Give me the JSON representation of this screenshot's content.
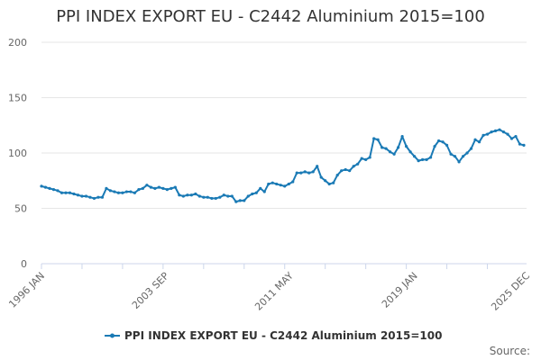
{
  "chart_data": {
    "type": "line",
    "title": "PPI INDEX EXPORT EU - C2442 Aluminium 2015=100",
    "xlabel": "",
    "ylabel": "",
    "ylim": [
      0,
      200
    ],
    "y_ticks": [
      0,
      50,
      100,
      150,
      200
    ],
    "x_tick_labels": [
      "1996 JAN",
      "2003 SEP",
      "2011 MAY",
      "2019 JAN",
      "2025 DEC"
    ],
    "x_tick_years": [
      1996.0,
      2003.667,
      2011.333,
      2019.0,
      2025.917
    ],
    "xlim": [
      1996.0,
      2025.917
    ],
    "grid": true,
    "legend_position": "bottom-center",
    "source_label": "Source:",
    "series": [
      {
        "name": "PPI INDEX EXPORT EU - C2442 Aluminium 2015=100",
        "color": "#1a7ab5",
        "points": [
          [
            1996.0,
            70
          ],
          [
            1996.25,
            69
          ],
          [
            1996.5,
            68
          ],
          [
            1996.75,
            67
          ],
          [
            1997.0,
            66
          ],
          [
            1997.25,
            64
          ],
          [
            1997.5,
            64
          ],
          [
            1997.75,
            64
          ],
          [
            1998.0,
            63
          ],
          [
            1998.25,
            62
          ],
          [
            1998.5,
            61
          ],
          [
            1998.75,
            61
          ],
          [
            1999.0,
            60
          ],
          [
            1999.25,
            59
          ],
          [
            1999.5,
            60
          ],
          [
            1999.75,
            60
          ],
          [
            2000.0,
            68
          ],
          [
            2000.25,
            66
          ],
          [
            2000.5,
            65
          ],
          [
            2000.75,
            64
          ],
          [
            2001.0,
            64
          ],
          [
            2001.25,
            65
          ],
          [
            2001.5,
            65
          ],
          [
            2001.75,
            64
          ],
          [
            2002.0,
            67
          ],
          [
            2002.25,
            68
          ],
          [
            2002.5,
            71
          ],
          [
            2002.75,
            69
          ],
          [
            2003.0,
            68
          ],
          [
            2003.25,
            69
          ],
          [
            2003.5,
            68
          ],
          [
            2003.75,
            67
          ],
          [
            2004.0,
            68
          ],
          [
            2004.25,
            69
          ],
          [
            2004.5,
            62
          ],
          [
            2004.75,
            61
          ],
          [
            2005.0,
            62
          ],
          [
            2005.25,
            62
          ],
          [
            2005.5,
            63
          ],
          [
            2005.75,
            61
          ],
          [
            2006.0,
            60
          ],
          [
            2006.25,
            60
          ],
          [
            2006.5,
            59
          ],
          [
            2006.75,
            59
          ],
          [
            2007.0,
            60
          ],
          [
            2007.25,
            62
          ],
          [
            2007.5,
            61
          ],
          [
            2007.75,
            61
          ],
          [
            2008.0,
            56
          ],
          [
            2008.25,
            57
          ],
          [
            2008.5,
            57
          ],
          [
            2008.75,
            61
          ],
          [
            2009.0,
            63
          ],
          [
            2009.25,
            64
          ],
          [
            2009.5,
            68
          ],
          [
            2009.75,
            65
          ],
          [
            2010.0,
            72
          ],
          [
            2010.25,
            73
          ],
          [
            2010.5,
            72
          ],
          [
            2010.75,
            71
          ],
          [
            2011.0,
            70
          ],
          [
            2011.25,
            72
          ],
          [
            2011.5,
            74
          ],
          [
            2011.75,
            82
          ],
          [
            2012.0,
            82
          ],
          [
            2012.25,
            83
          ],
          [
            2012.5,
            82
          ],
          [
            2012.75,
            83
          ],
          [
            2013.0,
            88
          ],
          [
            2013.25,
            78
          ],
          [
            2013.5,
            75
          ],
          [
            2013.75,
            72
          ],
          [
            2014.0,
            73
          ],
          [
            2014.25,
            80
          ],
          [
            2014.5,
            84
          ],
          [
            2014.75,
            85
          ],
          [
            2015.0,
            84
          ],
          [
            2015.25,
            88
          ],
          [
            2015.5,
            90
          ],
          [
            2015.75,
            95
          ],
          [
            2016.0,
            94
          ],
          [
            2016.25,
            96
          ],
          [
            2016.5,
            113
          ],
          [
            2016.75,
            112
          ],
          [
            2017.0,
            105
          ],
          [
            2017.25,
            104
          ],
          [
            2017.5,
            101
          ],
          [
            2017.75,
            99
          ],
          [
            2018.0,
            105
          ],
          [
            2018.25,
            115
          ],
          [
            2018.5,
            106
          ],
          [
            2018.75,
            101
          ],
          [
            2019.0,
            97
          ],
          [
            2019.25,
            93
          ],
          [
            2019.5,
            94
          ],
          [
            2019.75,
            94
          ],
          [
            2020.0,
            96
          ],
          [
            2020.25,
            106
          ],
          [
            2020.5,
            111
          ],
          [
            2020.75,
            110
          ],
          [
            2021.0,
            107
          ],
          [
            2021.25,
            99
          ],
          [
            2021.5,
            97
          ],
          [
            2021.75,
            92
          ],
          [
            2022.0,
            97
          ],
          [
            2022.25,
            100
          ],
          [
            2022.5,
            104
          ],
          [
            2022.75,
            112
          ],
          [
            2023.0,
            110
          ],
          [
            2023.25,
            116
          ],
          [
            2023.5,
            117
          ],
          [
            2023.75,
            119
          ],
          [
            2024.0,
            120
          ],
          [
            2024.25,
            121
          ],
          [
            2024.5,
            119
          ],
          [
            2024.75,
            117
          ],
          [
            2025.0,
            113
          ],
          [
            2025.25,
            115
          ],
          [
            2025.5,
            108
          ],
          [
            2025.75,
            107
          ]
        ]
      }
    ]
  }
}
